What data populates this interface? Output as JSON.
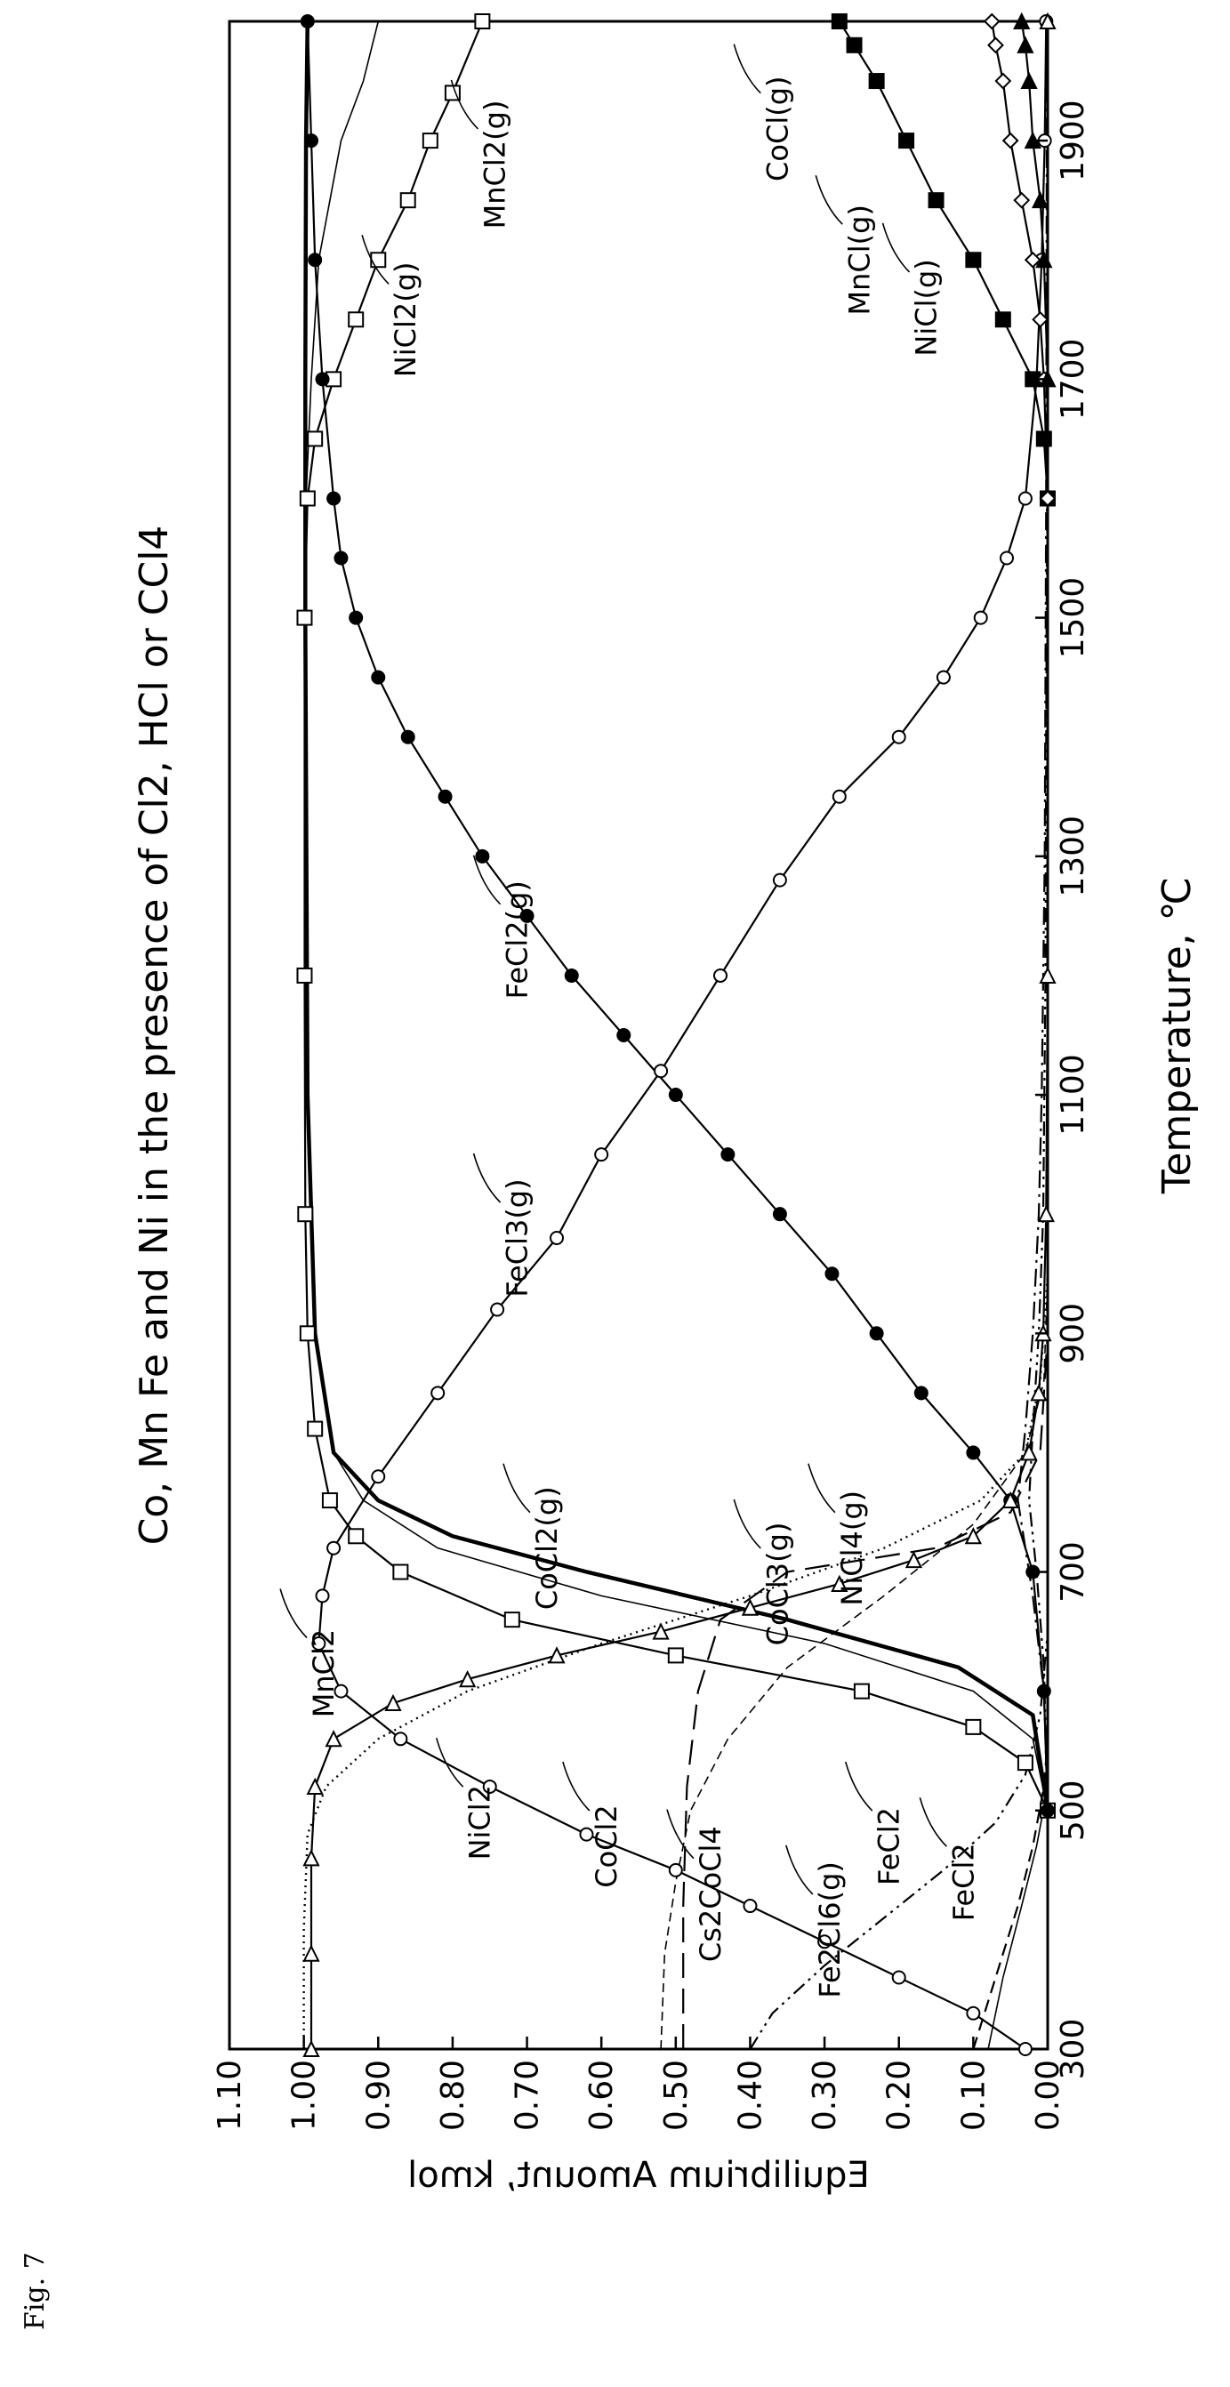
{
  "figure_label": "Fig. 7",
  "chart_data": {
    "type": "line",
    "title": "Co, Mn Fe and Ni in the presence of Cl2, HCl or CCl4",
    "xlabel": "Temperature, ℃",
    "ylabel": "Equilibrium Amount, kmol",
    "xlim": [
      300,
      2000
    ],
    "ylim": [
      0.0,
      1.1
    ],
    "x_ticks": [
      300,
      500,
      700,
      900,
      1100,
      1300,
      1500,
      1700,
      1900
    ],
    "y_ticks": [
      "0.00",
      "0.10",
      "0.20",
      "0.30",
      "0.40",
      "0.50",
      "0.60",
      "0.70",
      "0.80",
      "0.90",
      "1.00",
      "1.10"
    ],
    "grid": false,
    "series": [
      {
        "name": "NiCl2(g)",
        "style": "solid",
        "marker": "square",
        "points": [
          [
            500,
            0
          ],
          [
            540,
            0.03
          ],
          [
            570,
            0.1
          ],
          [
            600,
            0.25
          ],
          [
            630,
            0.5
          ],
          [
            660,
            0.72
          ],
          [
            700,
            0.87
          ],
          [
            730,
            0.93
          ],
          [
            760,
            0.965
          ],
          [
            820,
            0.985
          ],
          [
            900,
            0.995
          ],
          [
            1000,
            0.998
          ],
          [
            1200,
            0.999
          ],
          [
            1500,
            0.999
          ],
          [
            1600,
            0.995
          ],
          [
            1650,
            0.985
          ],
          [
            1700,
            0.96
          ],
          [
            1750,
            0.93
          ],
          [
            1800,
            0.9
          ],
          [
            1850,
            0.86
          ],
          [
            1900,
            0.83
          ],
          [
            1940,
            0.8
          ],
          [
            2000,
            0.76
          ]
        ]
      },
      {
        "name": "FeCl2(g)",
        "style": "solid",
        "marker": "filled-circle",
        "points": [
          [
            500,
            0.0
          ],
          [
            600,
            0.005
          ],
          [
            700,
            0.02
          ],
          [
            760,
            0.05
          ],
          [
            800,
            0.1
          ],
          [
            850,
            0.17
          ],
          [
            900,
            0.23
          ],
          [
            950,
            0.29
          ],
          [
            1000,
            0.36
          ],
          [
            1050,
            0.43
          ],
          [
            1100,
            0.5
          ],
          [
            1150,
            0.57
          ],
          [
            1200,
            0.64
          ],
          [
            1250,
            0.7
          ],
          [
            1300,
            0.76
          ],
          [
            1350,
            0.81
          ],
          [
            1400,
            0.86
          ],
          [
            1450,
            0.9
          ],
          [
            1500,
            0.93
          ],
          [
            1550,
            0.95
          ],
          [
            1600,
            0.96
          ],
          [
            1700,
            0.975
          ],
          [
            1800,
            0.985
          ],
          [
            1900,
            0.99
          ],
          [
            2000,
            0.995
          ]
        ]
      },
      {
        "name": "FeCl3(g)",
        "style": "solid",
        "marker": "open-circle",
        "points": [
          [
            300,
            0.03
          ],
          [
            330,
            0.1
          ],
          [
            360,
            0.2
          ],
          [
            390,
            0.3
          ],
          [
            420,
            0.4
          ],
          [
            450,
            0.5
          ],
          [
            480,
            0.62
          ],
          [
            520,
            0.75
          ],
          [
            560,
            0.87
          ],
          [
            600,
            0.95
          ],
          [
            640,
            0.98
          ],
          [
            680,
            0.975
          ],
          [
            720,
            0.96
          ],
          [
            780,
            0.9
          ],
          [
            850,
            0.82
          ],
          [
            920,
            0.74
          ],
          [
            980,
            0.66
          ],
          [
            1050,
            0.6
          ],
          [
            1120,
            0.52
          ],
          [
            1200,
            0.44
          ],
          [
            1280,
            0.36
          ],
          [
            1350,
            0.28
          ],
          [
            1400,
            0.2
          ],
          [
            1450,
            0.14
          ],
          [
            1500,
            0.09
          ],
          [
            1550,
            0.055
          ],
          [
            1600,
            0.03
          ],
          [
            1700,
            0.015
          ],
          [
            1800,
            0.008
          ],
          [
            1900,
            0.004
          ],
          [
            2000,
            0.002
          ]
        ]
      },
      {
        "name": "MnCl2",
        "style": "solid",
        "marker": "open-triangle",
        "points": [
          [
            300,
            0.99
          ],
          [
            380,
            0.99
          ],
          [
            460,
            0.99
          ],
          [
            520,
            0.985
          ],
          [
            560,
            0.96
          ],
          [
            590,
            0.88
          ],
          [
            610,
            0.78
          ],
          [
            630,
            0.66
          ],
          [
            650,
            0.52
          ],
          [
            670,
            0.4
          ],
          [
            690,
            0.28
          ],
          [
            710,
            0.18
          ],
          [
            730,
            0.1
          ],
          [
            760,
            0.05
          ],
          [
            800,
            0.025
          ],
          [
            850,
            0.012
          ],
          [
            900,
            0.006
          ],
          [
            1000,
            0.002
          ],
          [
            1200,
            0.0
          ],
          [
            2000,
            0.0
          ]
        ]
      },
      {
        "name": "MnCl2(g)",
        "style": "thin-solid",
        "marker": "none",
        "points": [
          [
            500,
            0
          ],
          [
            560,
            0.02
          ],
          [
            600,
            0.1
          ],
          [
            640,
            0.3
          ],
          [
            680,
            0.6
          ],
          [
            720,
            0.82
          ],
          [
            760,
            0.92
          ],
          [
            800,
            0.96
          ],
          [
            900,
            0.985
          ],
          [
            1100,
            0.995
          ],
          [
            1400,
            0.998
          ],
          [
            1600,
            0.997
          ],
          [
            1700,
            0.99
          ],
          [
            1800,
            0.98
          ],
          [
            1900,
            0.95
          ],
          [
            1950,
            0.92
          ],
          [
            2000,
            0.9
          ]
        ]
      },
      {
        "name": "CoCl2(g)",
        "style": "bold-solid",
        "marker": "none",
        "points": [
          [
            500,
            0
          ],
          [
            580,
            0.02
          ],
          [
            620,
            0.12
          ],
          [
            660,
            0.35
          ],
          [
            700,
            0.62
          ],
          [
            730,
            0.8
          ],
          [
            760,
            0.9
          ],
          [
            800,
            0.96
          ],
          [
            900,
            0.985
          ],
          [
            1100,
            0.995
          ],
          [
            1500,
            0.998
          ],
          [
            1700,
            0.998
          ],
          [
            1900,
            0.997
          ],
          [
            2000,
            0.995
          ]
        ]
      },
      {
        "name": "NiCl2",
        "style": "dotted",
        "marker": "none",
        "points": [
          [
            300,
            1.0
          ],
          [
            400,
            1.0
          ],
          [
            480,
            0.995
          ],
          [
            520,
            0.97
          ],
          [
            560,
            0.9
          ],
          [
            600,
            0.78
          ],
          [
            640,
            0.6
          ],
          [
            680,
            0.4
          ],
          [
            720,
            0.22
          ],
          [
            760,
            0.09
          ],
          [
            800,
            0.03
          ],
          [
            860,
            0.01
          ],
          [
            950,
            0.0
          ],
          [
            2000,
            0.0
          ]
        ]
      },
      {
        "name": "CoCl2",
        "style": "dashed-thin",
        "marker": "none",
        "points": [
          [
            300,
            0.52
          ],
          [
            380,
            0.515
          ],
          [
            440,
            0.5
          ],
          [
            500,
            0.48
          ],
          [
            560,
            0.43
          ],
          [
            620,
            0.35
          ],
          [
            680,
            0.22
          ],
          [
            740,
            0.1
          ],
          [
            800,
            0.03
          ],
          [
            860,
            0.005
          ],
          [
            950,
            0.0
          ],
          [
            2000,
            0.0
          ]
        ]
      },
      {
        "name": "Cs2CoCl4",
        "style": "long-dash",
        "marker": "none",
        "points": [
          [
            300,
            0.49
          ],
          [
            420,
            0.49
          ],
          [
            520,
            0.485
          ],
          [
            600,
            0.47
          ],
          [
            660,
            0.44
          ],
          [
            700,
            0.35
          ],
          [
            720,
            0.15
          ],
          [
            750,
            0.05
          ],
          [
            800,
            0.01
          ],
          [
            900,
            0.0
          ],
          [
            2000,
            0.0
          ]
        ]
      },
      {
        "name": "CoCl3(g)",
        "style": "dash-dot",
        "marker": "none",
        "points": [
          [
            500,
            0
          ],
          [
            600,
            0.005
          ],
          [
            680,
            0.02
          ],
          [
            760,
            0.04
          ],
          [
            820,
            0.03
          ],
          [
            900,
            0.02
          ],
          [
            1000,
            0.012
          ],
          [
            1100,
            0.008
          ],
          [
            1300,
            0.004
          ],
          [
            1600,
            0.002
          ],
          [
            2000,
            0.001
          ]
        ]
      },
      {
        "name": "NiCl4(g)",
        "style": "dash-dot-dot",
        "marker": "none",
        "points": [
          [
            500,
            0
          ],
          [
            620,
            0.005
          ],
          [
            700,
            0.015
          ],
          [
            760,
            0.025
          ],
          [
            820,
            0.02
          ],
          [
            900,
            0.012
          ],
          [
            1000,
            0.006
          ],
          [
            1200,
            0.003
          ],
          [
            1600,
            0.001
          ],
          [
            2000,
            0.0
          ]
        ]
      },
      {
        "name": "Fe2Cl6(g)",
        "style": "dash-dot-dot",
        "marker": "none",
        "points": [
          [
            300,
            0.4
          ],
          [
            330,
            0.37
          ],
          [
            370,
            0.3
          ],
          [
            410,
            0.22
          ],
          [
            450,
            0.14
          ],
          [
            490,
            0.07
          ],
          [
            530,
            0.03
          ],
          [
            580,
            0.01
          ],
          [
            650,
            0.0
          ],
          [
            2000,
            0.0
          ]
        ]
      },
      {
        "name": "FeCl2",
        "style": "dashed",
        "marker": "none",
        "points": [
          [
            300,
            0.1
          ],
          [
            360,
            0.07
          ],
          [
            420,
            0.04
          ],
          [
            470,
            0.02
          ],
          [
            520,
            0.005
          ],
          [
            560,
            0.0
          ],
          [
            2000,
            0.0
          ]
        ]
      },
      {
        "name": "FeCl2",
        "style": "thin-solid",
        "marker": "none",
        "points": [
          [
            300,
            0.08
          ],
          [
            360,
            0.06
          ],
          [
            420,
            0.035
          ],
          [
            470,
            0.015
          ],
          [
            510,
            0.003
          ],
          [
            560,
            0.0
          ],
          [
            2000,
            0.0
          ]
        ]
      },
      {
        "name": "CoCl(g)",
        "style": "solid",
        "marker": "filled-square",
        "points": [
          [
            1600,
            0.0
          ],
          [
            1650,
            0.005
          ],
          [
            1700,
            0.02
          ],
          [
            1750,
            0.06
          ],
          [
            1800,
            0.1
          ],
          [
            1850,
            0.15
          ],
          [
            1900,
            0.19
          ],
          [
            1950,
            0.23
          ],
          [
            1980,
            0.26
          ],
          [
            2000,
            0.28
          ]
        ]
      },
      {
        "name": "MnCl(g)",
        "style": "solid",
        "marker": "open-diamond",
        "points": [
          [
            1600,
            0.0
          ],
          [
            1700,
            0.005
          ],
          [
            1750,
            0.01
          ],
          [
            1800,
            0.02
          ],
          [
            1850,
            0.035
          ],
          [
            1900,
            0.05
          ],
          [
            1950,
            0.06
          ],
          [
            1980,
            0.07
          ],
          [
            2000,
            0.075
          ]
        ]
      },
      {
        "name": "NiCl(g)",
        "style": "solid",
        "marker": "filled-triangle",
        "points": [
          [
            1700,
            0.0
          ],
          [
            1800,
            0.005
          ],
          [
            1850,
            0.01
          ],
          [
            1900,
            0.02
          ],
          [
            1950,
            0.025
          ],
          [
            1980,
            0.03
          ],
          [
            2000,
            0.035
          ]
        ]
      }
    ],
    "annotations": [
      {
        "text": "NiCl2(g)",
        "x": 1750,
        "y": 0.85
      },
      {
        "text": "MnCl2(g)",
        "x": 1880,
        "y": 0.73
      },
      {
        "text": "FeCl2(g)",
        "x": 1230,
        "y": 0.7
      },
      {
        "text": "FeCl3(g)",
        "x": 980,
        "y": 0.7
      },
      {
        "text": "CoCl2(g)",
        "x": 720,
        "y": 0.66
      },
      {
        "text": "CoCl3(g)",
        "x": 690,
        "y": 0.35
      },
      {
        "text": "NiCl4(g)",
        "x": 720,
        "y": 0.25
      },
      {
        "text": "MnCl2",
        "x": 615,
        "y": 0.96
      },
      {
        "text": "NiCl2",
        "x": 490,
        "y": 0.75
      },
      {
        "text": "CoCl2",
        "x": 470,
        "y": 0.58
      },
      {
        "text": "Cs2CoCl4",
        "x": 430,
        "y": 0.44
      },
      {
        "text": "FeCl2",
        "x": 470,
        "y": 0.2
      },
      {
        "text": "FeCl2",
        "x": 440,
        "y": 0.1
      },
      {
        "text": "Fe2Cl6(g)",
        "x": 400,
        "y": 0.28
      },
      {
        "text": "CoCl(g)",
        "x": 1910,
        "y": 0.35
      },
      {
        "text": "MnCl(g)",
        "x": 1800,
        "y": 0.24
      },
      {
        "text": "NiCl(g)",
        "x": 1760,
        "y": 0.15
      }
    ]
  }
}
